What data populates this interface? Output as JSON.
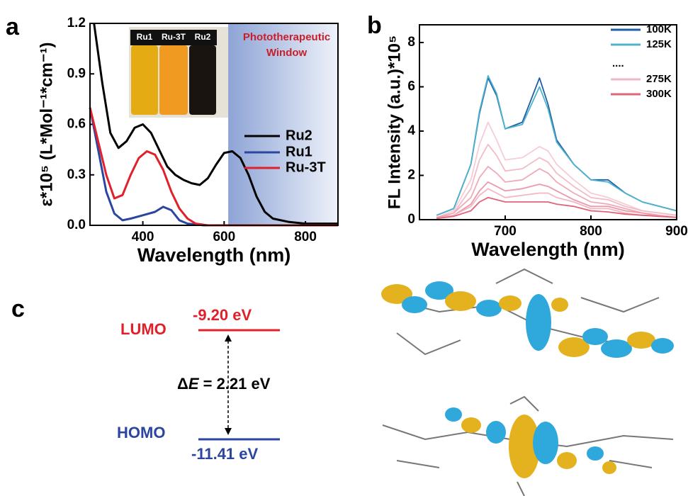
{
  "panel_labels": [
    "a",
    "b",
    "c"
  ],
  "chart_data": [
    {
      "type": "line",
      "xlabel": "Wavelength (nm)",
      "ylabel": "ε*10⁵ (L*Mol⁻¹*cm⁻¹)",
      "xlim": [
        270,
        880
      ],
      "ylim": [
        0,
        1.2
      ],
      "xticks": [
        400,
        600,
        800
      ],
      "yticks": [
        {
          "value": 0,
          "label": "0.0"
        },
        0.3,
        0.6,
        0.9,
        1.2
      ],
      "band": {
        "label": [
          "Phototherapeutic",
          "Window"
        ],
        "range": [
          610,
          880
        ]
      },
      "inset_labels": [
        "Ru1",
        "Ru-3T",
        "Ru2"
      ],
      "series": [
        {
          "name": "Ru2",
          "color": "#000000",
          "x": [
            280,
            300,
            320,
            340,
            360,
            380,
            400,
            420,
            440,
            460,
            480,
            500,
            520,
            540,
            560,
            580,
            600,
            620,
            640,
            660,
            680,
            700,
            720,
            760,
            800,
            880
          ],
          "values": [
            1.2,
            0.85,
            0.55,
            0.46,
            0.5,
            0.58,
            0.6,
            0.55,
            0.45,
            0.35,
            0.3,
            0.27,
            0.25,
            0.24,
            0.28,
            0.36,
            0.43,
            0.44,
            0.4,
            0.3,
            0.17,
            0.08,
            0.04,
            0.02,
            0.01,
            0.01
          ]
        },
        {
          "name": "Ru1",
          "color": "#2a46a0",
          "x": [
            270,
            290,
            310,
            330,
            350,
            370,
            400,
            430,
            450,
            470,
            490,
            510,
            550,
            880
          ],
          "values": [
            0.7,
            0.45,
            0.2,
            0.07,
            0.03,
            0.04,
            0.06,
            0.08,
            0.11,
            0.09,
            0.03,
            0.01,
            0,
            0
          ]
        },
        {
          "name": "Ru-3T",
          "color": "#e0202a",
          "x": [
            270,
            290,
            310,
            330,
            350,
            370,
            390,
            410,
            430,
            450,
            470,
            490,
            510,
            530,
            560,
            880
          ],
          "values": [
            0.7,
            0.5,
            0.3,
            0.16,
            0.18,
            0.3,
            0.4,
            0.44,
            0.42,
            0.33,
            0.2,
            0.1,
            0.04,
            0.01,
            0,
            0
          ]
        }
      ]
    },
    {
      "type": "line",
      "xlabel": "Wavelength (nm)",
      "ylabel": "FL Intensity (a.u.)*10⁵",
      "xlim": [
        600,
        900
      ],
      "ylim": [
        0,
        8.8
      ],
      "xticks": [
        700,
        800,
        900
      ],
      "yticks": [
        0,
        2,
        4,
        6,
        8
      ],
      "legend_ellipsis": "....",
      "x": [
        620,
        640,
        660,
        670,
        680,
        690,
        700,
        720,
        740,
        750,
        760,
        780,
        800,
        820,
        840,
        860,
        880,
        900
      ],
      "series": [
        {
          "name": "100K",
          "color": "#1f5fa8",
          "values": [
            0.2,
            0.5,
            2.5,
            4.8,
            6.4,
            5.6,
            4.1,
            4.4,
            6.4,
            5.2,
            3.6,
            2.5,
            1.8,
            1.8,
            1.2,
            0.8,
            0.6,
            0.4
          ]
        },
        {
          "name": "125K",
          "color": "#4fb3cc",
          "values": [
            0.2,
            0.5,
            2.5,
            4.9,
            6.5,
            5.7,
            4.1,
            4.3,
            6.0,
            5.0,
            3.5,
            2.5,
            1.8,
            1.7,
            1.2,
            0.8,
            0.6,
            0.4
          ]
        },
        {
          "color": "#f6cdd5",
          "values": [
            0.1,
            0.4,
            1.8,
            3.4,
            4.4,
            3.6,
            2.7,
            2.8,
            3.3,
            3.1,
            2.5,
            1.8,
            1.2,
            1.0,
            0.7,
            0.4,
            0.3,
            0.2
          ]
        },
        {
          "color": "#f3bcc7",
          "values": [
            0.1,
            0.3,
            1.4,
            2.7,
            3.4,
            2.9,
            2.2,
            2.3,
            2.8,
            2.6,
            2.1,
            1.5,
            1.0,
            0.9,
            0.6,
            0.4,
            0.3,
            0.2
          ]
        },
        {
          "color": "#efaab8",
          "values": [
            0.1,
            0.3,
            1.0,
            1.9,
            2.4,
            2.1,
            1.7,
            1.8,
            2.3,
            2.1,
            1.7,
            1.2,
            0.8,
            0.7,
            0.5,
            0.3,
            0.2,
            0.1
          ]
        },
        {
          "color": "#ec9aab",
          "values": [
            0.1,
            0.2,
            0.7,
            1.3,
            1.7,
            1.5,
            1.3,
            1.4,
            1.6,
            1.5,
            1.3,
            0.9,
            0.6,
            0.6,
            0.4,
            0.3,
            0.2,
            0.1
          ]
        },
        {
          "name": "275K",
          "color": "#f2b7c3",
          "values": [
            0.05,
            0.2,
            0.6,
            1.1,
            1.4,
            1.2,
            1.0,
            1.1,
            1.2,
            1.2,
            1.0,
            0.8,
            0.5,
            0.5,
            0.3,
            0.2,
            0.2,
            0.1
          ]
        },
        {
          "name": "300K",
          "color": "#e06477",
          "values": [
            0.05,
            0.15,
            0.4,
            0.8,
            1.0,
            0.9,
            0.8,
            0.8,
            0.8,
            0.8,
            0.7,
            0.6,
            0.4,
            0.35,
            0.25,
            0.2,
            0.15,
            0.1
          ]
        }
      ]
    }
  ],
  "energy_diagram": {
    "lumo": {
      "label": "LUMO",
      "energy": "-9.20 eV"
    },
    "homo": {
      "label": "HOMO",
      "energy": "-11.41 eV"
    },
    "gap": {
      "delta": "Δ",
      "variable": "E",
      "text": " = 2.21 eV"
    }
  }
}
